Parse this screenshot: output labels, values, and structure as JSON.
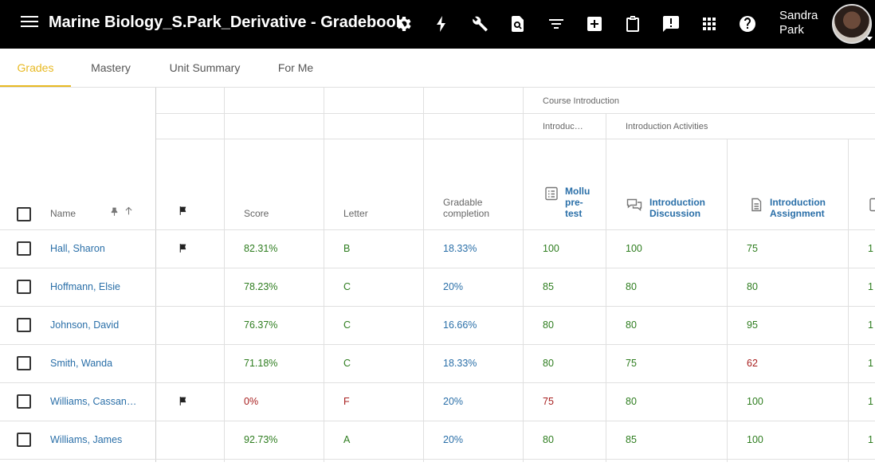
{
  "header": {
    "title": "Marine Biology_S.Park_Derivative - Gradebook",
    "user_first": "Sandra",
    "user_last": "Park"
  },
  "toolbar_icons": [
    "gear-icon",
    "lightning-icon",
    "wrench-icon",
    "search-document-icon",
    "filter-icon",
    "add-box-icon",
    "clipboard-icon",
    "feedback-icon",
    "apps-grid-icon",
    "help-icon"
  ],
  "tabs": [
    {
      "label": "Grades",
      "active": true
    },
    {
      "label": "Mastery",
      "active": false
    },
    {
      "label": "Unit Summary",
      "active": false
    },
    {
      "label": "For Me",
      "active": false
    }
  ],
  "columns": {
    "name": "Name",
    "score": "Score",
    "letter": "Letter",
    "completion_line1": "Gradable",
    "completion_line2": "completion"
  },
  "groups": {
    "course": "Course Introduction",
    "intro_short": "Introduc…",
    "intro_activities": "Introduction Activities"
  },
  "assignments": [
    {
      "label": "Mollu pre-test",
      "lines": [
        "Mollu",
        "pre-",
        "test"
      ],
      "icon": "checklist-icon"
    },
    {
      "label": "Introduction Discussion",
      "lines": [
        "Introduction",
        "Discussion"
      ],
      "icon": "discussion-icon"
    },
    {
      "label": "Introduction Assignment",
      "lines": [
        "Introduction",
        "Assignment"
      ],
      "icon": "assignment-icon"
    }
  ],
  "students": [
    {
      "name": "Hall, Sharon",
      "flag": true,
      "score": "82.31%",
      "letter": "B",
      "completion": "18.33%",
      "a1": "100",
      "a2": "100",
      "a3": "75",
      "a3_color": "green",
      "a1_color": "green",
      "score_color": "green",
      "letter_color": "green"
    },
    {
      "name": "Hoffmann, Elsie",
      "flag": false,
      "score": "78.23%",
      "letter": "C",
      "completion": "20%",
      "a1": "85",
      "a2": "80",
      "a3": "80",
      "a3_color": "green",
      "a1_color": "green",
      "score_color": "green",
      "letter_color": "green"
    },
    {
      "name": "Johnson, David",
      "flag": false,
      "score": "76.37%",
      "letter": "C",
      "completion": "16.66%",
      "a1": "80",
      "a2": "80",
      "a3": "95",
      "a3_color": "green",
      "a1_color": "green",
      "score_color": "green",
      "letter_color": "green"
    },
    {
      "name": "Smith, Wanda",
      "flag": false,
      "score": "71.18%",
      "letter": "C",
      "completion": "18.33%",
      "a1": "80",
      "a2": "75",
      "a3": "62",
      "a3_color": "red",
      "a1_color": "green",
      "score_color": "green",
      "letter_color": "green"
    },
    {
      "name": "Williams, Cassan…",
      "flag": true,
      "score": "0%",
      "letter": "F",
      "completion": "20%",
      "a1": "75",
      "a2": "80",
      "a3": "100",
      "a3_color": "green",
      "a1_color": "red",
      "score_color": "red",
      "letter_color": "red"
    },
    {
      "name": "Williams, James",
      "flag": false,
      "score": "92.73%",
      "letter": "A",
      "completion": "20%",
      "a1": "80",
      "a2": "85",
      "a3": "100",
      "a3_color": "green",
      "a1_color": "green",
      "score_color": "green",
      "letter_color": "green"
    }
  ],
  "partial_column_values": [
    "1",
    "1",
    "1",
    "1",
    "1",
    "1"
  ]
}
